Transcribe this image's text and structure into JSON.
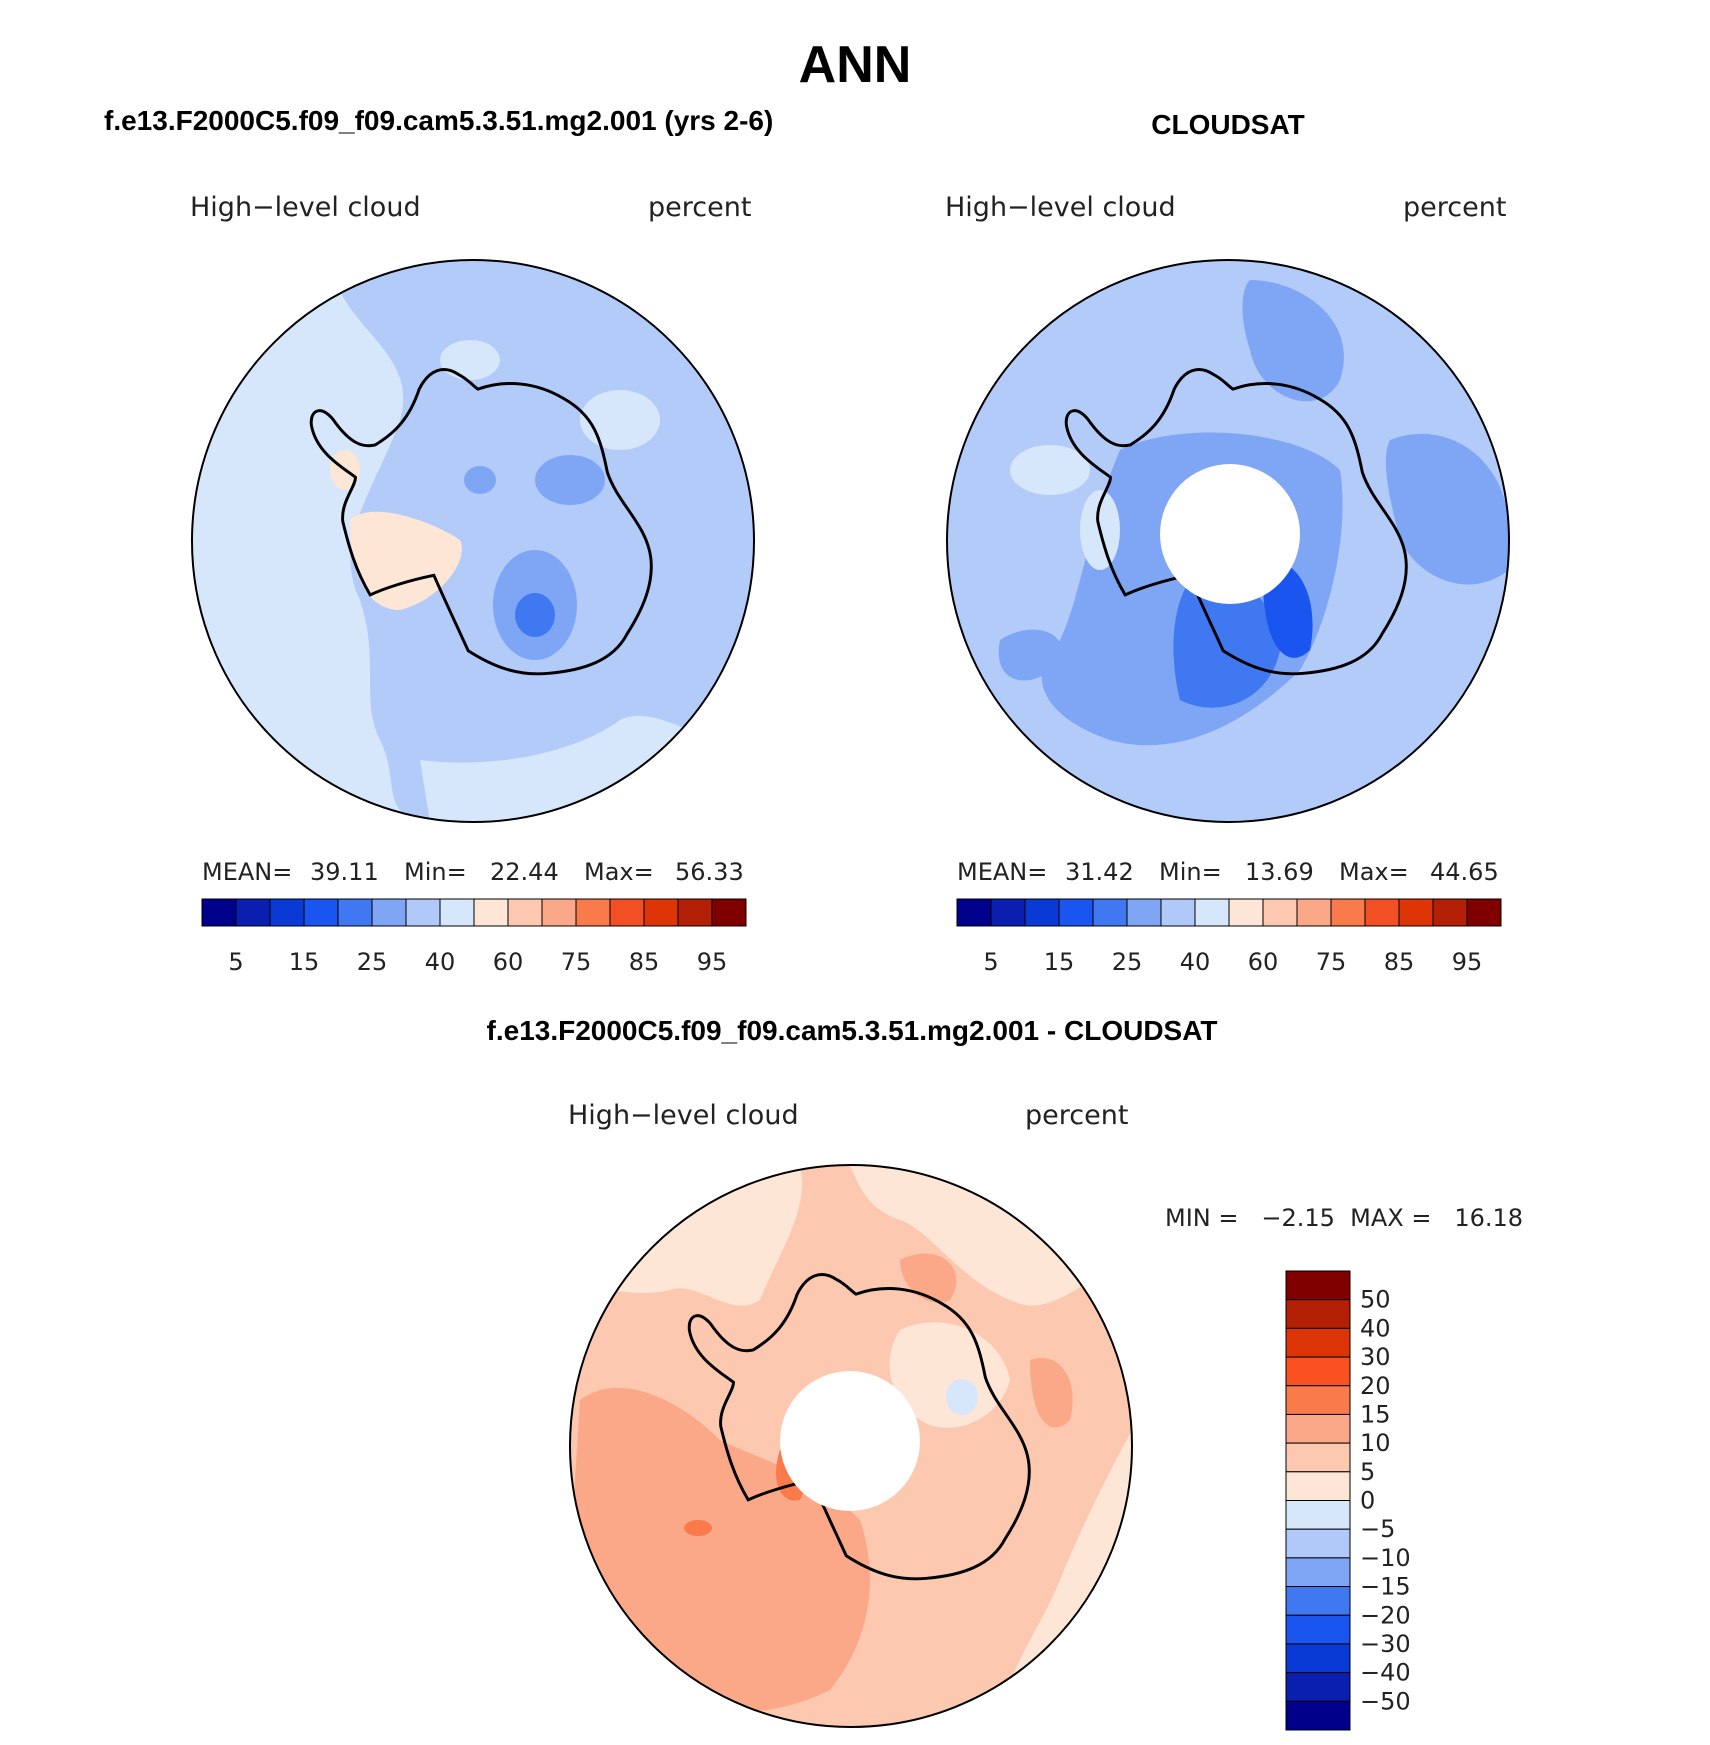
{
  "main_title": "ANN",
  "panels": [
    {
      "heading": "f.e13.F2000C5.f09_f09.cam5.3.51.mg2.001 (yrs 2-6)",
      "variable": "High−level cloud",
      "units": "percent",
      "stats": {
        "mean_label": "MEAN=",
        "mean": "39.11",
        "min_label": "Min=",
        "min": "22.44",
        "max_label": "Max=",
        "max": "56.33"
      },
      "hole": false
    },
    {
      "heading": "CLOUDSAT",
      "variable": "High−level cloud",
      "units": "percent",
      "stats": {
        "mean_label": "MEAN=",
        "mean": "31.42",
        "min_label": "Min=",
        "min": "13.69",
        "max_label": "Max=",
        "max": "44.65"
      },
      "hole": true
    }
  ],
  "diff": {
    "heading": "f.e13.F2000C5.f09_f09.cam5.3.51.mg2.001 - CLOUDSAT",
    "variable": "High−level cloud",
    "units": "percent",
    "minmax": "MIN =   −2.15  MAX =   16.18"
  },
  "colorbar_main": {
    "colors": [
      "#00008b",
      "#0a1fb0",
      "#0a3ad6",
      "#1a55f0",
      "#3f78f0",
      "#7fa6f5",
      "#b1c9f9",
      "#d6e7fb",
      "#fde6d6",
      "#fcc8b0",
      "#fba888",
      "#f97a4a",
      "#f25024",
      "#de3506",
      "#b32006",
      "#800000"
    ],
    "labels": [
      "5",
      "15",
      "25",
      "40",
      "60",
      "75",
      "85",
      "95"
    ]
  },
  "colorbar_diff": {
    "colors": [
      "#800000",
      "#b32006",
      "#de3506",
      "#fb5020",
      "#f97a4a",
      "#fba888",
      "#fcc8b0",
      "#fde6d6",
      "#d6e7fb",
      "#b1c9f9",
      "#7fa6f5",
      "#3f78f0",
      "#1a55f0",
      "#0a3ad6",
      "#0a1fb0",
      "#00008b"
    ],
    "labels": [
      "50",
      "40",
      "30",
      "20",
      "15",
      "10",
      "5",
      "0",
      "−5",
      "−10",
      "−15",
      "−20",
      "−30",
      "−40",
      "−50"
    ]
  }
}
